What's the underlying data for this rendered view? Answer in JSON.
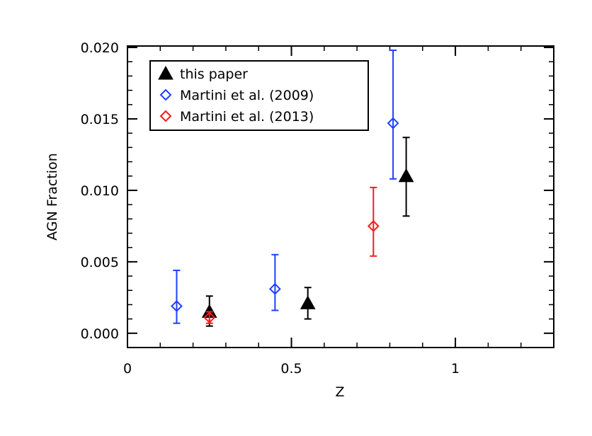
{
  "chart_data": {
    "type": "scatter",
    "xlabel": "Z",
    "ylabel": "AGN Fraction",
    "xlim": [
      0,
      1.3
    ],
    "ylim": [
      -0.001,
      0.0201
    ],
    "x_ticks": [
      0,
      0.5,
      1
    ],
    "x_tick_labels": [
      "0",
      "0.5",
      "1"
    ],
    "y_ticks": [
      0.0,
      0.005,
      0.01,
      0.015,
      0.02
    ],
    "y_tick_labels": [
      "0.000",
      "0.005",
      "0.010",
      "0.015",
      "0.020"
    ],
    "legend_position": "top-left",
    "series": [
      {
        "name": "this paper",
        "marker": "filled-triangle",
        "color": "#000000",
        "points": [
          {
            "x": 0.25,
            "y": 0.0015,
            "y_low": 0.0005,
            "y_high": 0.0026
          },
          {
            "x": 0.55,
            "y": 0.0021,
            "y_low": 0.001,
            "y_high": 0.0032
          },
          {
            "x": 0.85,
            "y": 0.011,
            "y_low": 0.0082,
            "y_high": 0.0137
          }
        ]
      },
      {
        "name": "Martini et al. (2009)",
        "marker": "open-diamond",
        "color": "#1f3fff",
        "points": [
          {
            "x": 0.15,
            "y": 0.0019,
            "y_low": 0.0007,
            "y_high": 0.0044
          },
          {
            "x": 0.45,
            "y": 0.0031,
            "y_low": 0.0016,
            "y_high": 0.0055
          },
          {
            "x": 0.81,
            "y": 0.0147,
            "y_low": 0.0108,
            "y_high": 0.0198
          }
        ]
      },
      {
        "name": "Martini et al. (2013)",
        "marker": "open-diamond",
        "color": "#ff1a1a",
        "points": [
          {
            "x": 0.25,
            "y": 0.0011,
            "y_low": 0.0007,
            "y_high": 0.0015
          },
          {
            "x": 0.75,
            "y": 0.0075,
            "y_low": 0.0054,
            "y_high": 0.0102
          }
        ]
      }
    ]
  }
}
